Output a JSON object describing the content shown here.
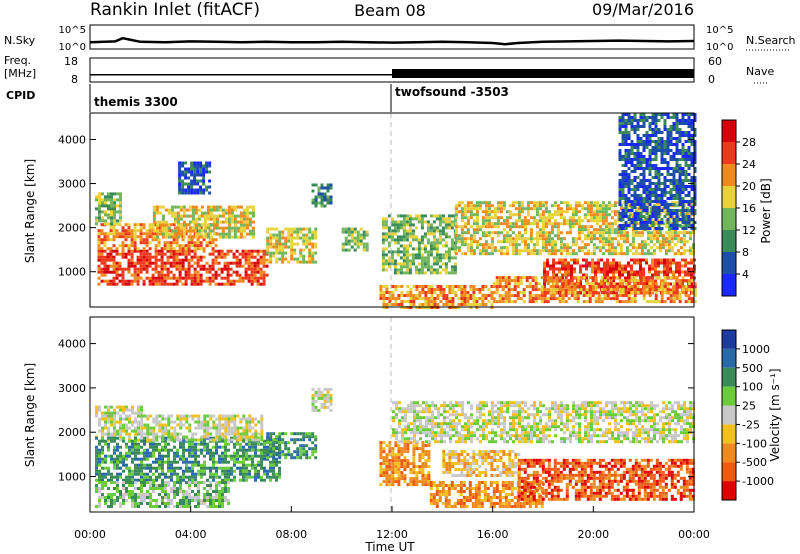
{
  "header": {
    "station": "Rankin Inlet (fitACF)",
    "beam": "Beam 08",
    "date": "09/Mar/2016"
  },
  "chart_data": [
    {
      "type": "line",
      "name_left": "N.Sky",
      "name_right": "N.Search",
      "left_ticks": [
        "10^5",
        "10^0"
      ],
      "right_ticks": [
        "10^5",
        "10^0"
      ],
      "ylim": [
        0,
        5
      ],
      "x": [
        0,
        1,
        1.3,
        2,
        3,
        4,
        5,
        6,
        7,
        8,
        9,
        10,
        11,
        12,
        13,
        14,
        15,
        16,
        16.5,
        17,
        18,
        19,
        20,
        21,
        22,
        23,
        24
      ],
      "values": [
        1.2,
        1.4,
        2.2,
        1.3,
        1.2,
        1.4,
        1.3,
        1.2,
        1.3,
        1.2,
        1.2,
        1.3,
        1.2,
        1.1,
        1.2,
        1.3,
        1.2,
        1.0,
        0.7,
        1.0,
        1.3,
        1.4,
        1.5,
        1.6,
        1.5,
        1.4,
        1.5
      ]
    },
    {
      "type": "line",
      "name_left": "Freq.",
      "unit_left": "[MHz]",
      "name_right": "Nave",
      "left_ticks": [
        "18",
        "8"
      ],
      "right_ticks": [
        "60",
        "0"
      ],
      "ylim": [
        8,
        18
      ],
      "x": [
        0,
        12,
        12.01,
        24
      ],
      "values": [
        10.6,
        10.6,
        10.5,
        10.5
      ]
    },
    {
      "type": "table",
      "label": "CPID",
      "segments": [
        {
          "start": 0,
          "end": 12,
          "name": "themis 3300"
        },
        {
          "start": 12,
          "end": 24,
          "name": "twofsound -3503"
        }
      ]
    },
    {
      "type": "heatmap",
      "ylabel": "Slant Range [km]",
      "ylim": [
        200,
        4600
      ],
      "yticks": [
        1000,
        2000,
        3000,
        4000
      ],
      "colorbar_label": "Power [dB]",
      "colorbar_ticks": [
        "4",
        "8",
        "12",
        "16",
        "20",
        "24",
        "28"
      ],
      "colorbar_colors": [
        "#1a28ff",
        "#1d4fa8",
        "#3a8a5a",
        "#72b65c",
        "#e8d23c",
        "#f08a1e",
        "#ee3a1c",
        "#d8000a"
      ],
      "regions": [
        {
          "t0": 0.3,
          "t1": 7.0,
          "r0": 700,
          "r1": 1500,
          "level": 6
        },
        {
          "t0": 0.3,
          "t1": 5.0,
          "r0": 1500,
          "r1": 2100,
          "level": 5
        },
        {
          "t0": 2.5,
          "t1": 6.5,
          "r0": 1800,
          "r1": 2500,
          "level": 4
        },
        {
          "t0": 0.2,
          "t1": 1.2,
          "r0": 2100,
          "r1": 2800,
          "level": 3
        },
        {
          "t0": 3.5,
          "t1": 4.8,
          "r0": 2800,
          "r1": 3500,
          "level": 1
        },
        {
          "t0": 7.0,
          "t1": 9.0,
          "r0": 1200,
          "r1": 2000,
          "level": 4
        },
        {
          "t0": 8.8,
          "t1": 9.6,
          "r0": 2500,
          "r1": 3000,
          "level": 2
        },
        {
          "t0": 10.0,
          "t1": 11.0,
          "r0": 1500,
          "r1": 2000,
          "level": 3
        },
        {
          "t0": 11.5,
          "t1": 16.0,
          "r0": 200,
          "r1": 700,
          "level": 5
        },
        {
          "t0": 11.6,
          "t1": 14.5,
          "r0": 1000,
          "r1": 2300,
          "level": 3
        },
        {
          "t0": 14.5,
          "t1": 24.0,
          "r0": 1400,
          "r1": 2600,
          "level": 4
        },
        {
          "t0": 18.0,
          "t1": 24.0,
          "r0": 500,
          "r1": 1300,
          "level": 6
        },
        {
          "t0": 16.0,
          "t1": 24.0,
          "r0": 300,
          "r1": 900,
          "level": 5
        },
        {
          "t0": 21.0,
          "t1": 24.0,
          "r0": 2000,
          "r1": 4600,
          "level": 1
        }
      ]
    },
    {
      "type": "heatmap",
      "ylabel": "Slant Range [km]",
      "xlabel": "Time UT",
      "ylim": [
        200,
        4600
      ],
      "yticks": [
        1000,
        2000,
        3000,
        4000
      ],
      "x_ticks": [
        "00:00",
        "04:00",
        "08:00",
        "12:00",
        "16:00",
        "20:00",
        "00:00"
      ],
      "colorbar_label": "Velocity [m s⁻¹]",
      "colorbar_ticks": [
        "1000",
        "500",
        "100",
        "25",
        "-25",
        "-100",
        "-500",
        "-1000"
      ],
      "colorbar_colors": [
        "#1d3a9e",
        "#2a6aa8",
        "#3a8a5a",
        "#6ccc3c",
        "#c8c8c8",
        "#f0c020",
        "#f08a1e",
        "#ee5a10",
        "#e00000"
      ],
      "regions": [
        {
          "t0": 0.2,
          "t1": 2.0,
          "r0": 1800,
          "r1": 2600,
          "level": 4
        },
        {
          "t0": 0.2,
          "t1": 7.5,
          "r0": 900,
          "r1": 1900,
          "level": 2
        },
        {
          "t0": 2.0,
          "t1": 6.8,
          "r0": 1800,
          "r1": 2400,
          "level": 4
        },
        {
          "t0": 0.2,
          "t1": 5.5,
          "r0": 300,
          "r1": 900,
          "level": 3
        },
        {
          "t0": 7.0,
          "t1": 9.0,
          "r0": 1400,
          "r1": 2000,
          "level": 2
        },
        {
          "t0": 8.8,
          "t1": 9.6,
          "r0": 2500,
          "r1": 3000,
          "level": 4
        },
        {
          "t0": 11.5,
          "t1": 13.5,
          "r0": 800,
          "r1": 1800,
          "level": 6
        },
        {
          "t0": 12.0,
          "t1": 24.0,
          "r0": 1800,
          "r1": 2700,
          "level": 4
        },
        {
          "t0": 13.5,
          "t1": 18.0,
          "r0": 300,
          "r1": 900,
          "level": 6
        },
        {
          "t0": 17.0,
          "t1": 24.0,
          "r0": 500,
          "r1": 1400,
          "level": 7
        },
        {
          "t0": 14.0,
          "t1": 17.0,
          "r0": 1000,
          "r1": 1600,
          "level": 5
        }
      ]
    }
  ]
}
